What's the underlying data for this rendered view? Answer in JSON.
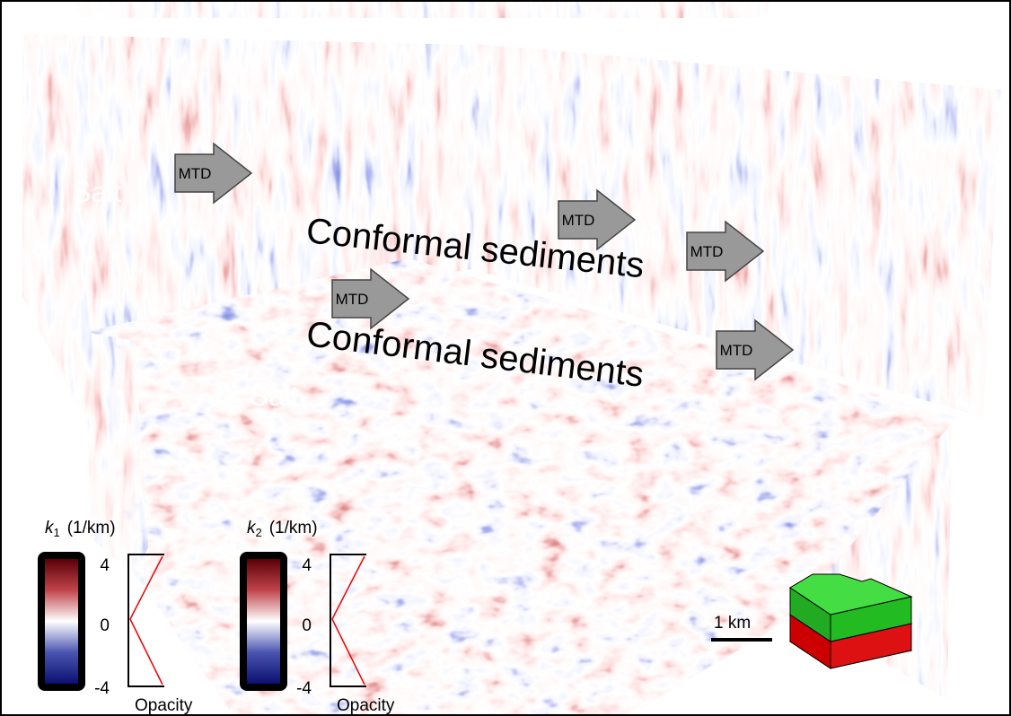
{
  "annotations": {
    "salt": [
      "Salt",
      "Salt"
    ],
    "mtd": [
      "MTD",
      "MTD",
      "MTD",
      "MTD",
      "MTD"
    ],
    "conformal": [
      "Conformal sediments",
      "Conformal sediments"
    ]
  },
  "colorbars": [
    {
      "symbol": "k",
      "subscript": "1",
      "unit": "(1/km)",
      "ticks": [
        4,
        0,
        -4
      ],
      "opacity_label": "Opacity"
    },
    {
      "symbol": "k",
      "subscript": "2",
      "unit": "(1/km)",
      "ticks": [
        4,
        0,
        -4
      ],
      "opacity_label": "Opacity"
    }
  ],
  "scale_bar": "1 km"
}
